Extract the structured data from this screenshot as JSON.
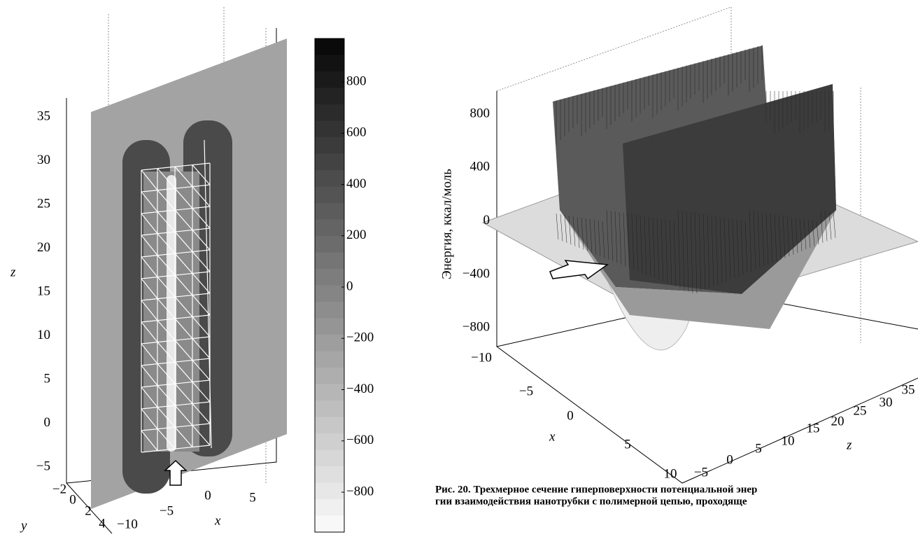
{
  "left_plot": {
    "z_label": "z",
    "z_ticks": [
      "35",
      "30",
      "25",
      "20",
      "15",
      "10",
      "5",
      "0",
      "−5"
    ],
    "y_label": "y",
    "y_ticks": [
      "−2",
      "0",
      "2",
      "4"
    ],
    "x_label": "x",
    "x_ticks": [
      "−10",
      "−5",
      "0",
      "5"
    ]
  },
  "colorbar": {
    "ticks": [
      "800",
      "600",
      "400",
      "200",
      "0",
      "−200",
      "−400",
      "−600",
      "−800"
    ]
  },
  "right_plot": {
    "energy_label": "Энергия, ккал/моль",
    "energy_ticks": [
      "800",
      "400",
      "0",
      "−400",
      "−800"
    ],
    "x_label": "x",
    "x_ticks": [
      "−10",
      "−5",
      "0",
      "5",
      "10"
    ],
    "z_label": "z",
    "z_ticks": [
      "−5",
      "0",
      "5",
      "10",
      "15",
      "20",
      "25",
      "30",
      "35"
    ]
  },
  "caption": {
    "lines": [
      "Рис. 20. Трехмерное сечение гиперповерхности потенциальной энер",
      "гии взаимодействия нанотрубки с полимерной цепью, проходяще"
    ]
  }
}
